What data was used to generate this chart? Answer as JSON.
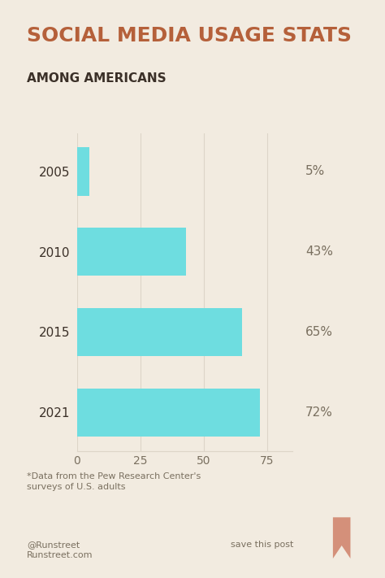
{
  "title": "SOCIAL MEDIA USAGE STATS",
  "subtitle": "AMONG AMERICANS",
  "categories": [
    "2005",
    "2010",
    "2015",
    "2021"
  ],
  "values": [
    5,
    43,
    65,
    72
  ],
  "labels": [
    "5%",
    "43%",
    "65%",
    "72%"
  ],
  "bar_color": "#6EDDE0",
  "background_color": "#F2EBE0",
  "title_color": "#B5603A",
  "subtitle_color": "#3B3028",
  "bar_label_color": "#7A7060",
  "tick_label_color": "#7A7060",
  "year_label_color": "#3B3028",
  "footnote_color": "#7A7060",
  "footer_color": "#7A7060",
  "footnote": "*Data from the Pew Research Center's\nsurveys of U.S. adults",
  "footer_left": "@Runstreet\nRunstreet.com",
  "footer_right": "save this post",
  "xlim": [
    0,
    85
  ],
  "xticks": [
    0,
    25,
    50,
    75
  ],
  "grid_color": "#DDD5C8",
  "title_fontsize": 18,
  "subtitle_fontsize": 11,
  "year_fontsize": 11,
  "label_fontsize": 11,
  "tick_fontsize": 10,
  "footnote_fontsize": 8,
  "footer_fontsize": 8,
  "bookmark_color": "#D4907A"
}
